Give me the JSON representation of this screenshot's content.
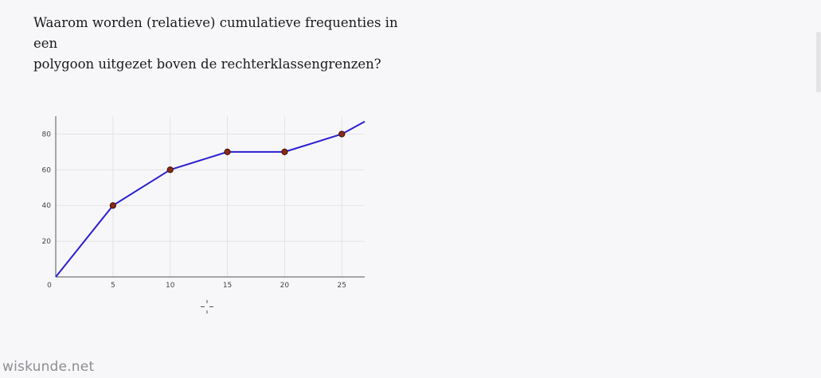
{
  "question": {
    "line1": "Waarom worden (relatieve) cumulatieve frequenties in een",
    "line2": "polygoon uitgezet boven de rechterklassengrenzen?"
  },
  "brand": "wiskunde.net",
  "icons": {
    "cursor": "crosshair-cursor-icon"
  },
  "colors": {
    "line": "#2a1fd1",
    "point_fill": "#8b2a14",
    "grid": "#e3e3e6",
    "axis": "#555555",
    "background": "#f7f6f9"
  },
  "chart_data": {
    "type": "line",
    "title": "",
    "xlabel": "",
    "ylabel": "",
    "x_ticks": [
      0,
      5,
      10,
      15,
      20,
      25
    ],
    "y_ticks": [
      20,
      40,
      60,
      80
    ],
    "xlim": [
      0,
      27
    ],
    "ylim": [
      0,
      90
    ],
    "grid": true,
    "series": [
      {
        "x": [
          0,
          5,
          10,
          15,
          20,
          25,
          27
        ],
        "y": [
          0,
          40,
          60,
          70,
          70,
          80,
          87
        ]
      }
    ],
    "markers": {
      "x": [
        5,
        10,
        15,
        20,
        25
      ],
      "y": [
        40,
        60,
        70,
        70,
        80
      ]
    }
  }
}
